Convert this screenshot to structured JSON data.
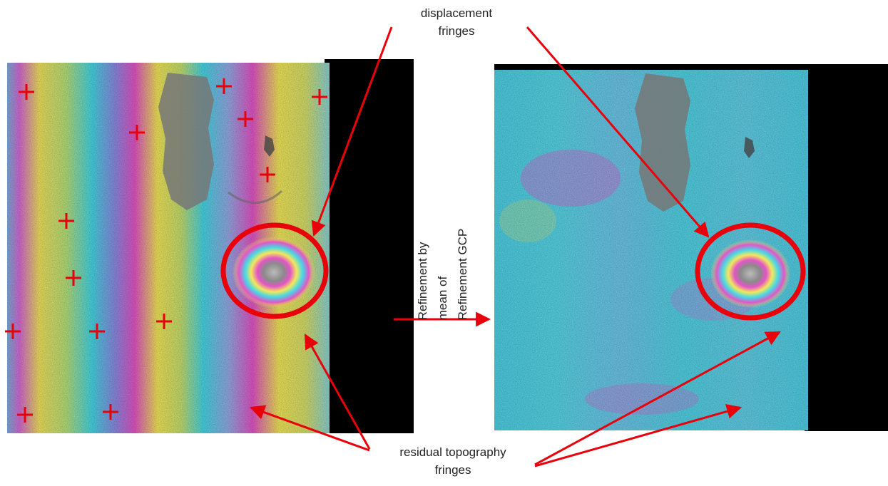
{
  "annotations": {
    "displacement_label": [
      "displacement",
      "fringes"
    ],
    "topography_label": [
      "residual topography",
      "fringes"
    ],
    "refinement_label": [
      "Refinement by",
      "mean of",
      "Refinement GCP"
    ]
  },
  "colors": {
    "annotation": "#e8000a",
    "mask": "#000000",
    "fringe_cyan": "#46d8e6",
    "fringe_magenta": "#e455c8",
    "fringe_yellow": "#f3e85a"
  }
}
